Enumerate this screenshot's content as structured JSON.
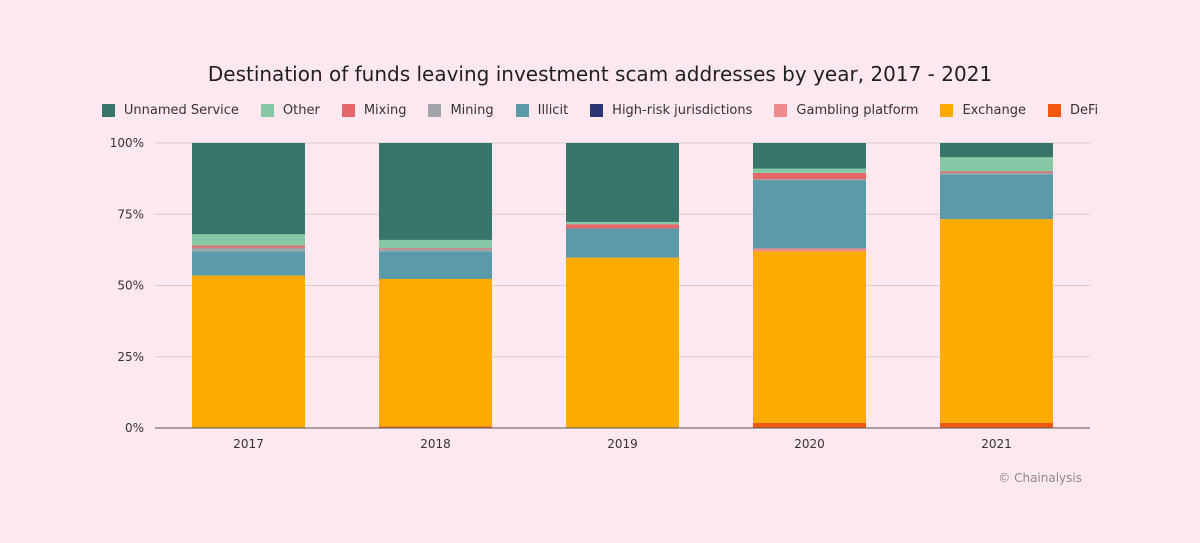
{
  "chart_data": {
    "type": "bar",
    "stacked": true,
    "title": "Destination of funds leaving investment scam addresses by year, 2017 - 2021",
    "categories": [
      "2017",
      "2018",
      "2019",
      "2020",
      "2021"
    ],
    "y_ticks": [
      "0%",
      "25%",
      "50%",
      "75%",
      "100%"
    ],
    "ylim": [
      0,
      100
    ],
    "grid": true,
    "legend_position": "top",
    "series": [
      {
        "name": "DeFi",
        "color": "#f2570f",
        "values": [
          0,
          0.5,
          0,
          1.8,
          1.8
        ]
      },
      {
        "name": "Exchange",
        "color": "#ffaa00",
        "values": [
          53.5,
          51.8,
          59.8,
          60.2,
          71.5
        ]
      },
      {
        "name": "Gambling platform",
        "color": "#f08a8c",
        "values": [
          0,
          0,
          0,
          1.0,
          0
        ]
      },
      {
        "name": "High-risk jurisdictions",
        "color": "#2b3574",
        "values": [
          0,
          0,
          0,
          0,
          0
        ]
      },
      {
        "name": "Illicit",
        "color": "#5b9aa8",
        "values": [
          8.5,
          9.7,
          10.2,
          24.0,
          15.7
        ]
      },
      {
        "name": "Mining",
        "color": "#9ea4a8",
        "values": [
          1.3,
          0.8,
          0,
          0.3,
          0.5
        ]
      },
      {
        "name": "Mixing",
        "color": "#e3676b",
        "values": [
          0.7,
          0.3,
          1.5,
          2.2,
          0.5
        ]
      },
      {
        "name": "Other",
        "color": "#86c7a6",
        "values": [
          4.0,
          2.9,
          0.8,
          1.5,
          5.0
        ]
      },
      {
        "name": "Unnamed Service",
        "color": "#36766a",
        "values": [
          32.0,
          34.0,
          27.7,
          9.0,
          5.0
        ]
      }
    ]
  },
  "legend_order": [
    "Unnamed Service",
    "Other",
    "Mixing",
    "Mining",
    "Illicit",
    "High-risk jurisdictions",
    "Gambling platform",
    "Exchange",
    "DeFi"
  ],
  "credit": "© Chainalysis"
}
